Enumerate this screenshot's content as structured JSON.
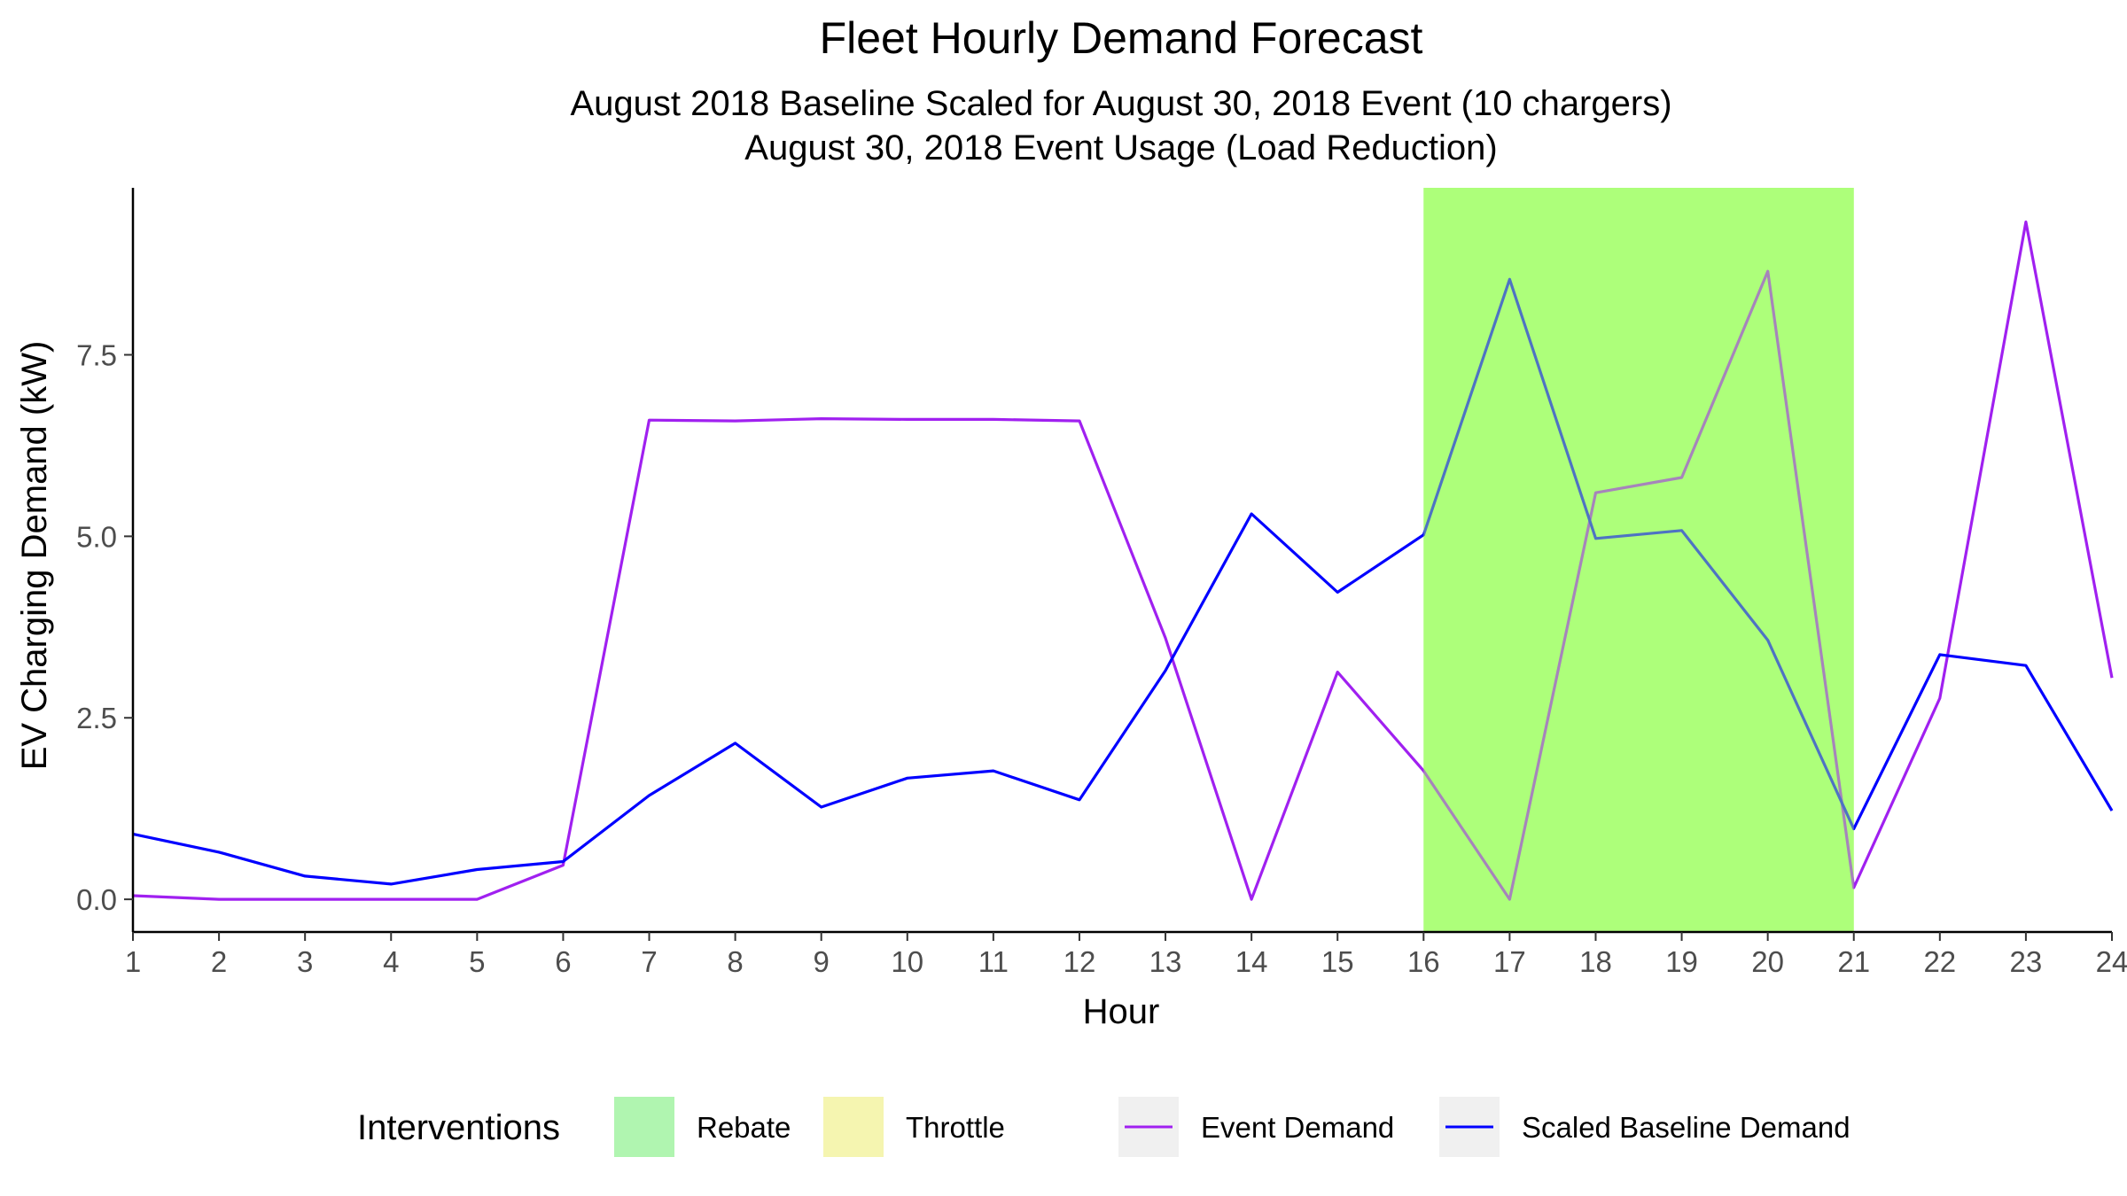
{
  "chart_data": {
    "type": "line",
    "title": "Fleet Hourly Demand Forecast",
    "subtitle_lines": [
      "August 2018 Baseline Scaled for August 30, 2018 Event (10 chargers)",
      "August 30, 2018 Event Usage (Load Reduction)"
    ],
    "xlabel": "Hour",
    "ylabel": "EV Charging Demand (kW)",
    "x": [
      1,
      2,
      3,
      4,
      5,
      6,
      7,
      8,
      9,
      10,
      11,
      12,
      13,
      14,
      15,
      16,
      17,
      18,
      19,
      20,
      21,
      22,
      23,
      24
    ],
    "xlim": [
      1,
      24
    ],
    "ylim": [
      -0.45,
      9.8
    ],
    "y_ticks": [
      0.0,
      2.5,
      5.0,
      7.5
    ],
    "y_tick_labels": [
      "0.0",
      "2.5",
      "5.0",
      "7.5"
    ],
    "grid": false,
    "series": [
      {
        "name": "Event Demand",
        "color": "#a020f0",
        "values": [
          0.05,
          0.0,
          0.0,
          0.0,
          0.0,
          0.47,
          6.6,
          6.59,
          6.62,
          6.61,
          6.61,
          6.59,
          3.6,
          0.0,
          3.13,
          1.77,
          0.0,
          5.6,
          5.81,
          8.65,
          0.16,
          2.77,
          9.33,
          3.05
        ]
      },
      {
        "name": "Scaled Baseline Demand",
        "color": "#0000ff",
        "values": [
          0.9,
          0.65,
          0.32,
          0.21,
          0.41,
          0.52,
          1.43,
          2.15,
          1.27,
          1.67,
          1.77,
          1.37,
          3.15,
          5.31,
          4.23,
          5.02,
          8.54,
          4.97,
          5.08,
          3.57,
          0.97,
          3.37,
          3.22,
          1.22
        ]
      }
    ],
    "shaded_regions": [
      {
        "intervention": "Rebate",
        "x_start": 16,
        "x_end": 21,
        "color": "#adff7a"
      }
    ],
    "legend": {
      "position": "bottom",
      "title": "Interventions",
      "fill_items": [
        {
          "label": "Rebate",
          "color": "#b0f5b0"
        },
        {
          "label": "Throttle",
          "color": "#f5f5b0"
        }
      ],
      "line_items": [
        {
          "label": "Event Demand",
          "color": "#a020f0"
        },
        {
          "label": "Scaled Baseline Demand",
          "color": "#0000ff"
        }
      ],
      "key_background": "#f0f0f0"
    }
  }
}
